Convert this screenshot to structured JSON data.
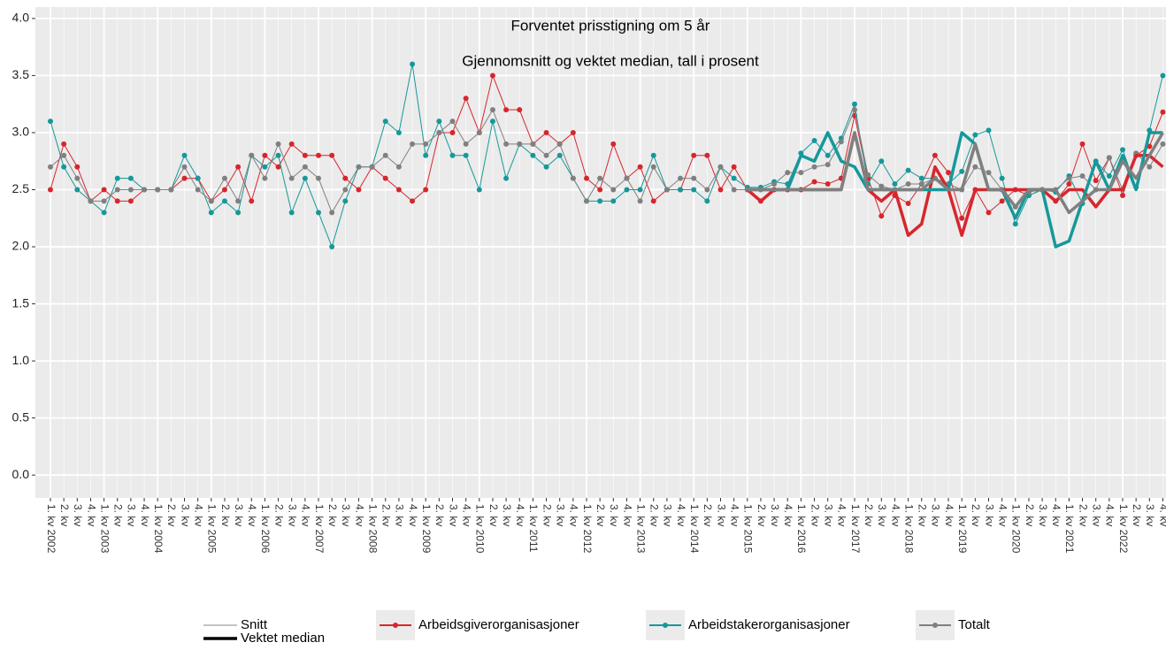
{
  "chart_data": {
    "type": "line",
    "title": "Forventet prisstigning om 5 år",
    "subtitle": "Gjennomsnitt og vektet median, tall i prosent",
    "categories": [
      "1. kv 2002",
      "2. kv",
      "3. kv",
      "4. kv",
      "1. kv 2003",
      "2. kv",
      "3. kv",
      "4. kv",
      "1. kv 2004",
      "2. kv",
      "3. kv",
      "4. kv",
      "1. kv 2005",
      "2. kv",
      "3. kv",
      "4. kv",
      "1. kv 2006",
      "2. kv",
      "3. kv",
      "4. kv",
      "1. kv 2007",
      "2. kv",
      "3. kv",
      "4. kv",
      "1. kv 2008",
      "2. kv",
      "3. kv",
      "4. kv",
      "1. kv 2009",
      "2. kv",
      "3. kv",
      "4. kv",
      "1. kv 2010",
      "2. kv",
      "3. kv",
      "4. kv",
      "1. kv 2011",
      "2. kv",
      "3. kv",
      "4. kv",
      "1. kv 2012",
      "2. kv",
      "3. kv",
      "4. kv",
      "1. kv 2013",
      "2. kv",
      "3. kv",
      "4. kv",
      "1. kv 2014",
      "2. kv",
      "3. kv",
      "4. kv",
      "1. kv 2015",
      "2. kv",
      "3. kv",
      "4. kv",
      "1. kv 2016",
      "2. kv",
      "3. kv",
      "4. kv",
      "1. kv 2017",
      "2. kv",
      "3. kv",
      "4. kv",
      "1. kv 2018",
      "2. kv",
      "3. kv",
      "4. kv",
      "1. kv 2019",
      "2. kv",
      "3. kv",
      "4. kv",
      "1. kv 2020",
      "2. kv",
      "3. kv",
      "4. kv",
      "1. kv 2021",
      "2. kv",
      "3. kv",
      "4. kv",
      "1. kv 2022",
      "2. kv",
      "3. kv",
      "4. kv"
    ],
    "series": [
      {
        "name": "Arbeidsgiverorganisasjoner",
        "color": "#d7262d",
        "values": [
          2.5,
          2.9,
          2.7,
          2.4,
          2.5,
          2.4,
          2.4,
          2.5,
          2.5,
          2.5,
          2.6,
          2.6,
          2.4,
          2.5,
          2.7,
          2.4,
          2.8,
          2.7,
          2.9,
          2.8,
          2.8,
          2.8,
          2.6,
          2.5,
          2.7,
          2.6,
          2.5,
          2.4,
          2.5,
          3.0,
          3.0,
          3.3,
          3.0,
          3.5,
          3.2,
          3.2,
          2.9,
          3.0,
          2.9,
          3.0,
          2.6,
          2.5,
          2.9,
          2.6,
          2.7,
          2.4,
          2.5,
          2.5,
          2.8,
          2.8,
          2.5,
          2.7,
          2.5,
          2.4,
          2.5,
          2.5,
          2.5,
          2.57,
          2.55,
          2.6,
          3.15,
          2.6,
          2.27,
          2.45,
          2.38,
          2.55,
          2.8,
          2.65,
          2.25,
          2.5,
          2.3,
          2.4,
          2.5,
          2.45,
          2.5,
          2.4,
          2.55,
          2.9,
          2.58,
          2.78,
          2.45,
          2.8,
          2.88,
          3.18
        ],
        "median": [
          null,
          null,
          null,
          null,
          null,
          null,
          null,
          null,
          null,
          null,
          null,
          null,
          null,
          null,
          null,
          null,
          null,
          null,
          null,
          null,
          null,
          null,
          null,
          null,
          null,
          null,
          null,
          null,
          null,
          null,
          null,
          null,
          null,
          null,
          null,
          null,
          null,
          null,
          null,
          null,
          null,
          null,
          null,
          null,
          null,
          null,
          null,
          null,
          null,
          null,
          null,
          null,
          2.5,
          2.4,
          2.5,
          2.5,
          2.5,
          2.5,
          2.5,
          2.5,
          3.0,
          2.5,
          2.4,
          2.5,
          2.1,
          2.2,
          2.7,
          2.5,
          2.1,
          2.5,
          2.5,
          2.5,
          2.5,
          2.5,
          2.5,
          2.4,
          2.5,
          2.5,
          2.35,
          2.5,
          2.5,
          2.8,
          2.8,
          2.7
        ]
      },
      {
        "name": "Arbeidstakerorganisasjoner",
        "color": "#17989a",
        "values": [
          3.1,
          2.7,
          2.5,
          2.4,
          2.3,
          2.6,
          2.6,
          2.5,
          2.5,
          2.5,
          2.8,
          2.6,
          2.3,
          2.4,
          2.3,
          2.8,
          2.7,
          2.8,
          2.3,
          2.6,
          2.3,
          2.0,
          2.4,
          2.7,
          2.7,
          3.1,
          3.0,
          3.6,
          2.8,
          3.1,
          2.8,
          2.8,
          2.5,
          3.1,
          2.6,
          2.9,
          2.8,
          2.7,
          2.8,
          2.6,
          2.4,
          2.4,
          2.4,
          2.5,
          2.5,
          2.8,
          2.5,
          2.5,
          2.5,
          2.4,
          2.7,
          2.6,
          2.52,
          2.52,
          2.57,
          2.55,
          2.82,
          2.93,
          2.8,
          2.95,
          3.25,
          2.55,
          2.75,
          2.55,
          2.67,
          2.6,
          2.6,
          2.55,
          2.66,
          2.98,
          3.02,
          2.6,
          2.2,
          2.45,
          2.5,
          2.48,
          2.62,
          2.38,
          2.75,
          2.62,
          2.85,
          2.52,
          3.02,
          3.5
        ],
        "median": [
          null,
          null,
          null,
          null,
          null,
          null,
          null,
          null,
          null,
          null,
          null,
          null,
          null,
          null,
          null,
          null,
          null,
          null,
          null,
          null,
          null,
          null,
          null,
          null,
          null,
          null,
          null,
          null,
          null,
          null,
          null,
          null,
          null,
          null,
          null,
          null,
          null,
          null,
          null,
          null,
          null,
          null,
          null,
          null,
          null,
          null,
          null,
          null,
          null,
          null,
          null,
          null,
          2.5,
          2.5,
          2.5,
          2.5,
          2.8,
          2.75,
          3.0,
          2.75,
          2.7,
          2.5,
          2.5,
          2.5,
          2.5,
          2.5,
          2.5,
          2.5,
          3.0,
          2.9,
          2.5,
          2.5,
          2.25,
          2.5,
          2.5,
          2.0,
          2.05,
          2.4,
          2.75,
          2.5,
          2.8,
          2.5,
          3.0,
          3.0
        ]
      },
      {
        "name": "Totalt",
        "color": "#808080",
        "values": [
          2.7,
          2.8,
          2.6,
          2.4,
          2.4,
          2.5,
          2.5,
          2.5,
          2.5,
          2.5,
          2.7,
          2.5,
          2.4,
          2.6,
          2.4,
          2.8,
          2.6,
          2.9,
          2.6,
          2.7,
          2.6,
          2.3,
          2.5,
          2.7,
          2.7,
          2.8,
          2.7,
          2.9,
          2.9,
          3.0,
          3.1,
          2.9,
          3.0,
          3.2,
          2.9,
          2.9,
          2.9,
          2.8,
          2.9,
          2.6,
          2.4,
          2.6,
          2.5,
          2.6,
          2.4,
          2.7,
          2.5,
          2.6,
          2.6,
          2.5,
          2.7,
          2.5,
          2.5,
          2.5,
          2.55,
          2.65,
          2.65,
          2.7,
          2.72,
          2.92,
          3.2,
          2.63,
          2.53,
          2.5,
          2.55,
          2.55,
          2.6,
          2.55,
          2.5,
          2.7,
          2.65,
          2.5,
          2.35,
          2.48,
          2.5,
          2.5,
          2.6,
          2.62,
          2.5,
          2.78,
          2.5,
          2.82,
          2.7,
          2.9
        ],
        "median": [
          null,
          null,
          null,
          null,
          null,
          null,
          null,
          null,
          null,
          null,
          null,
          null,
          null,
          null,
          null,
          null,
          null,
          null,
          null,
          null,
          null,
          null,
          null,
          null,
          null,
          null,
          null,
          null,
          null,
          null,
          null,
          null,
          null,
          null,
          null,
          null,
          null,
          null,
          null,
          null,
          null,
          null,
          null,
          null,
          null,
          null,
          null,
          null,
          null,
          null,
          null,
          null,
          2.5,
          2.5,
          2.5,
          2.5,
          2.5,
          2.5,
          2.5,
          2.5,
          3.0,
          2.5,
          2.5,
          2.5,
          2.5,
          2.5,
          2.6,
          2.5,
          2.5,
          2.9,
          2.5,
          2.5,
          2.35,
          2.5,
          2.5,
          2.5,
          2.3,
          2.4,
          2.5,
          2.5,
          2.75,
          2.6,
          2.8,
          3.0
        ]
      }
    ],
    "line_styles": [
      {
        "name": "Snitt",
        "width": 1
      },
      {
        "name": "Vektet median",
        "width": 3.5
      }
    ],
    "ylim": [
      -0.2,
      4.1
    ],
    "yticks": [
      {
        "value": 0,
        "label": "0.0"
      },
      {
        "value": 0.5,
        "label": "0.5"
      },
      {
        "value": 1,
        "label": "1.0"
      },
      {
        "value": 1.5,
        "label": "1.5"
      },
      {
        "value": 2,
        "label": "2.0"
      },
      {
        "value": 2.5,
        "label": "2.5"
      },
      {
        "value": 3,
        "label": "3.0"
      },
      {
        "value": 3.5,
        "label": "3.5"
      },
      {
        "value": 4,
        "label": "4.0"
      }
    ],
    "grid": true,
    "legend": "bottom"
  }
}
